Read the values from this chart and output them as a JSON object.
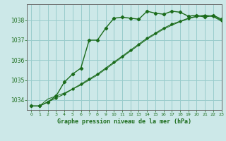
{
  "title": "Graphe pression niveau de la mer (hPa)",
  "background_color": "#cce8e8",
  "grid_color": "#99cccc",
  "line_color": "#1a6b1a",
  "spine_color": "#666666",
  "xlim": [
    -0.5,
    23
  ],
  "ylim": [
    1033.5,
    1038.8
  ],
  "yticks": [
    1034,
    1035,
    1036,
    1037,
    1038
  ],
  "xticks": [
    0,
    1,
    2,
    3,
    4,
    5,
    6,
    7,
    8,
    9,
    10,
    11,
    12,
    13,
    14,
    15,
    16,
    17,
    18,
    19,
    20,
    21,
    22,
    23
  ],
  "series1_x": [
    0,
    1,
    2,
    3,
    4,
    5,
    6,
    7,
    8,
    9,
    10,
    11,
    12,
    13,
    14,
    15,
    16,
    17,
    18,
    19,
    20,
    21,
    22,
    23
  ],
  "series1_y": [
    1033.7,
    1033.7,
    1033.9,
    1034.2,
    1034.9,
    1035.3,
    1035.6,
    1037.0,
    1037.0,
    1037.6,
    1038.1,
    1038.15,
    1038.1,
    1038.05,
    1038.45,
    1038.35,
    1038.3,
    1038.45,
    1038.4,
    1038.2,
    1038.25,
    1038.15,
    1038.25,
    1038.05
  ],
  "series2_x": [
    0,
    1,
    2,
    3,
    4,
    5,
    6,
    7,
    8,
    9,
    10,
    11,
    12,
    13,
    14,
    15,
    16,
    17,
    18,
    19,
    20,
    21,
    22,
    23
  ],
  "series2_y": [
    1033.7,
    1033.7,
    1033.9,
    1034.1,
    1034.3,
    1034.55,
    1034.8,
    1035.05,
    1035.3,
    1035.6,
    1035.9,
    1036.2,
    1036.5,
    1036.8,
    1037.1,
    1037.35,
    1037.6,
    1037.8,
    1037.95,
    1038.1,
    1038.2,
    1038.25,
    1038.2,
    1038.0
  ],
  "series3_x": [
    0,
    1,
    2,
    3,
    4,
    5,
    6,
    7,
    8,
    9,
    10,
    11,
    12,
    13,
    14,
    15,
    16,
    17,
    18,
    19,
    20,
    21,
    22,
    23
  ],
  "series3_y": [
    1033.7,
    1033.7,
    1034.05,
    1034.2,
    1034.35,
    1034.55,
    1034.75,
    1035.0,
    1035.25,
    1035.55,
    1035.85,
    1036.15,
    1036.45,
    1036.75,
    1037.05,
    1037.3,
    1037.55,
    1037.75,
    1037.92,
    1038.08,
    1038.18,
    1038.22,
    1038.18,
    1037.95
  ]
}
